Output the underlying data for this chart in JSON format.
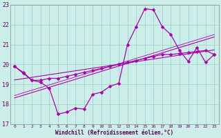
{
  "xlabel": "Windchill (Refroidissement éolien,°C)",
  "background_color": "#cceee8",
  "grid_color": "#99cccc",
  "line_color": "#aa00aa",
  "hours": [
    0,
    1,
    2,
    3,
    4,
    5,
    6,
    7,
    8,
    9,
    10,
    11,
    12,
    13,
    14,
    15,
    16,
    17,
    18,
    19,
    20,
    21,
    22,
    23
  ],
  "windchill": [
    19.9,
    19.55,
    19.2,
    19.1,
    18.8,
    17.5,
    17.6,
    17.8,
    17.75,
    18.5,
    18.6,
    18.9,
    19.05,
    21.0,
    21.9,
    22.8,
    22.75,
    21.9,
    21.5,
    20.7,
    20.15,
    20.85,
    20.1,
    20.5
  ],
  "temp": [
    19.9,
    19.6,
    19.2,
    19.2,
    19.3,
    19.3,
    19.4,
    19.5,
    19.6,
    19.7,
    19.8,
    19.9,
    20.0,
    20.1,
    20.2,
    20.3,
    20.4,
    20.5,
    20.5,
    20.55,
    20.6,
    20.65,
    20.7,
    20.5
  ],
  "ylim": [
    17.0,
    23.0
  ],
  "xlim": [
    0,
    23
  ],
  "yticks": [
    17,
    18,
    19,
    20,
    21,
    22,
    23
  ]
}
